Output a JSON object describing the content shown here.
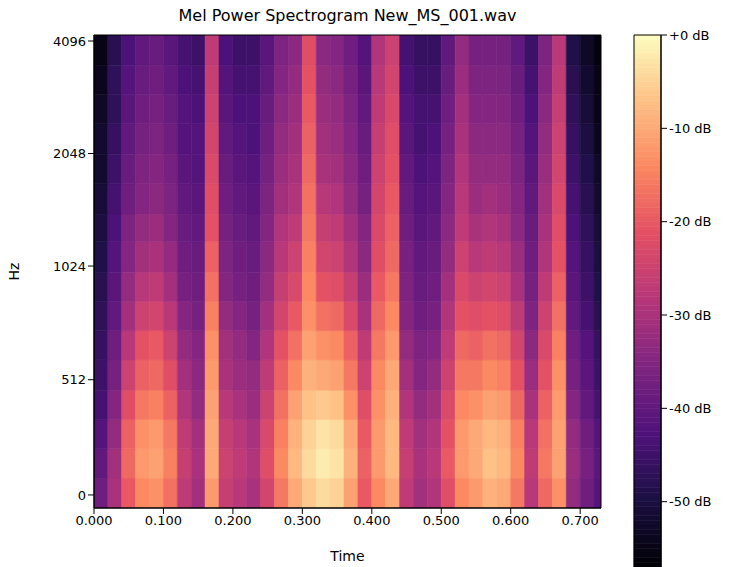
{
  "chart_data": {
    "type": "heatmap",
    "title": "Mel Power Spectrogram New_MS_001.wav",
    "x_label": "Time",
    "y_label": "Hz",
    "xlim": [
      0,
      0.73
    ],
    "xticks": [
      {
        "value": 0,
        "label": "0.000"
      },
      {
        "value": 0.1,
        "label": "0.100"
      },
      {
        "value": 0.2,
        "label": "0.200"
      },
      {
        "value": 0.3,
        "label": "0.300"
      },
      {
        "value": 0.4,
        "label": "0.400"
      },
      {
        "value": 0.5,
        "label": "0.500"
      },
      {
        "value": 0.6,
        "label": "0.600"
      },
      {
        "value": 0.7,
        "label": "0.700"
      }
    ],
    "ylim": [
      -58,
      4250
    ],
    "yticks": [
      0,
      512,
      1024,
      2048,
      4096
    ],
    "log": "y",
    "x_edges": [
      0,
      0.02,
      0.04,
      0.06,
      0.08,
      0.1,
      0.12,
      0.14,
      0.16,
      0.18,
      0.2,
      0.22,
      0.24,
      0.26,
      0.28,
      0.3,
      0.32,
      0.34,
      0.36,
      0.38,
      0.4,
      0.42,
      0.44,
      0.46,
      0.48,
      0.5,
      0.52,
      0.54,
      0.56,
      0.58,
      0.6,
      0.62,
      0.64,
      0.66,
      0.68,
      0.7,
      0.72,
      0.73
    ],
    "y_edges": [
      -58,
      75,
      205,
      335,
      465,
      600,
      730,
      860,
      990,
      1190,
      1410,
      1700,
      2040,
      2460,
      2950,
      3530,
      4250
    ],
    "cells": [
      [
        -38,
        -40,
        -42,
        -44,
        -45,
        -46,
        -47,
        -48,
        -49,
        -50,
        -51,
        -52,
        -52,
        -53,
        -54,
        -55
      ],
      [
        -30,
        -31,
        -33,
        -35,
        -37,
        -38,
        -40,
        -41,
        -42,
        -43,
        -44,
        -45,
        -46,
        -47,
        -47,
        -48
      ],
      [
        -20,
        -18,
        -19,
        -22,
        -25,
        -28,
        -31,
        -33,
        -35,
        -36,
        -38,
        -39,
        -40,
        -41,
        -42,
        -43
      ],
      [
        -14,
        -12,
        -13,
        -16,
        -19,
        -21,
        -25,
        -28,
        -31,
        -33,
        -35,
        -36,
        -37,
        -38,
        -39,
        -40
      ],
      [
        -13,
        -11,
        -12,
        -15,
        -18,
        -20,
        -24,
        -27,
        -30,
        -32,
        -34,
        -35,
        -36,
        -37,
        -38,
        -39
      ],
      [
        -17,
        -15,
        -16,
        -19,
        -22,
        -25,
        -28,
        -31,
        -33,
        -35,
        -36,
        -37,
        -38,
        -39,
        -40,
        -41
      ],
      [
        -27,
        -26,
        -27,
        -29,
        -31,
        -33,
        -35,
        -37,
        -38,
        -39,
        -40,
        -41,
        -42,
        -42,
        -43,
        -44
      ],
      [
        -31,
        -30,
        -31,
        -33,
        -34,
        -35,
        -37,
        -38,
        -39,
        -40,
        -41,
        -42,
        -42,
        -43,
        -44,
        -45
      ],
      [
        -12,
        -10,
        -10,
        -11,
        -12,
        -13,
        -15,
        -17,
        -19,
        -21,
        -22,
        -23,
        -24,
        -25,
        -26,
        -27
      ],
      [
        -26,
        -25,
        -26,
        -28,
        -30,
        -31,
        -33,
        -35,
        -36,
        -37,
        -38,
        -39,
        -40,
        -41,
        -42,
        -43
      ],
      [
        -28,
        -27,
        -28,
        -30,
        -32,
        -33,
        -35,
        -37,
        -38,
        -39,
        -40,
        -41,
        -42,
        -43,
        -44,
        -45
      ],
      [
        -30,
        -29,
        -30,
        -32,
        -33,
        -35,
        -37,
        -38,
        -39,
        -40,
        -41,
        -42,
        -43,
        -43,
        -44,
        -45
      ],
      [
        -24,
        -22,
        -23,
        -25,
        -27,
        -29,
        -31,
        -33,
        -34,
        -35,
        -36,
        -37,
        -38,
        -39,
        -40,
        -41
      ],
      [
        -16,
        -14,
        -15,
        -17,
        -19,
        -21,
        -24,
        -26,
        -28,
        -29,
        -31,
        -32,
        -33,
        -34,
        -35,
        -36
      ],
      [
        -10,
        -8,
        -9,
        -11,
        -14,
        -17,
        -20,
        -23,
        -25,
        -27,
        -29,
        -30,
        -31,
        -32,
        -33,
        -34
      ],
      [
        -6,
        -4,
        -5,
        -7,
        -9,
        -11,
        -13,
        -14,
        -15,
        -16,
        -17,
        -18,
        -19,
        -20,
        -21,
        -22
      ],
      [
        -4,
        -2,
        -3,
        -6,
        -10,
        -13,
        -17,
        -21,
        -24,
        -26,
        -28,
        -30,
        -31,
        -32,
        -33,
        -34
      ],
      [
        -5,
        -3,
        -4,
        -7,
        -11,
        -14,
        -18,
        -22,
        -25,
        -27,
        -29,
        -31,
        -32,
        -33,
        -34,
        -35
      ],
      [
        -11,
        -9,
        -10,
        -13,
        -16,
        -19,
        -23,
        -26,
        -29,
        -31,
        -33,
        -34,
        -35,
        -36,
        -37,
        -38
      ],
      [
        -20,
        -19,
        -20,
        -22,
        -25,
        -27,
        -30,
        -32,
        -34,
        -35,
        -37,
        -38,
        -39,
        -40,
        -41,
        -42
      ],
      [
        -14,
        -12,
        -12,
        -13,
        -14,
        -16,
        -18,
        -20,
        -22,
        -23,
        -24,
        -25,
        -26,
        -27,
        -28,
        -29
      ],
      [
        -10,
        -8,
        -8,
        -9,
        -10,
        -12,
        -14,
        -16,
        -18,
        -19,
        -20,
        -21,
        -22,
        -23,
        -24,
        -25
      ],
      [
        -27,
        -26,
        -27,
        -29,
        -31,
        -33,
        -35,
        -36,
        -37,
        -38,
        -39,
        -40,
        -41,
        -42,
        -43,
        -44
      ],
      [
        -31,
        -30,
        -31,
        -33,
        -35,
        -36,
        -38,
        -39,
        -40,
        -41,
        -42,
        -43,
        -44,
        -44,
        -45,
        -46
      ],
      [
        -29,
        -28,
        -29,
        -31,
        -33,
        -35,
        -37,
        -38,
        -39,
        -40,
        -41,
        -42,
        -43,
        -44,
        -45,
        -46
      ],
      [
        -22,
        -20,
        -21,
        -23,
        -25,
        -27,
        -29,
        -31,
        -33,
        -34,
        -35,
        -36,
        -37,
        -38,
        -39,
        -40
      ],
      [
        -14,
        -12,
        -12,
        -14,
        -16,
        -18,
        -21,
        -23,
        -25,
        -27,
        -28,
        -29,
        -30,
        -31,
        -32,
        -33
      ],
      [
        -12,
        -10,
        -10,
        -13,
        -16,
        -19,
        -22,
        -25,
        -28,
        -30,
        -32,
        -33,
        -34,
        -35,
        -36,
        -37
      ],
      [
        -9,
        -7,
        -8,
        -11,
        -14,
        -17,
        -21,
        -24,
        -27,
        -29,
        -31,
        -33,
        -34,
        -35,
        -36,
        -37
      ],
      [
        -10,
        -8,
        -9,
        -12,
        -15,
        -18,
        -22,
        -25,
        -28,
        -30,
        -32,
        -33,
        -34,
        -35,
        -36,
        -37
      ],
      [
        -16,
        -14,
        -15,
        -18,
        -21,
        -24,
        -27,
        -30,
        -32,
        -34,
        -35,
        -36,
        -37,
        -38,
        -39,
        -40
      ],
      [
        -28,
        -27,
        -28,
        -30,
        -32,
        -34,
        -36,
        -37,
        -38,
        -39,
        -40,
        -41,
        -42,
        -43,
        -44,
        -45
      ],
      [
        -18,
        -16,
        -17,
        -19,
        -21,
        -23,
        -25,
        -27,
        -29,
        -30,
        -31,
        -32,
        -33,
        -34,
        -35,
        -36
      ],
      [
        -13,
        -11,
        -11,
        -12,
        -13,
        -15,
        -17,
        -19,
        -21,
        -22,
        -23,
        -24,
        -25,
        -26,
        -27,
        -28
      ],
      [
        -33,
        -32,
        -33,
        -35,
        -37,
        -38,
        -40,
        -41,
        -42,
        -43,
        -44,
        -45,
        -46,
        -47,
        -48,
        -49
      ],
      [
        -38,
        -37,
        -38,
        -40,
        -41,
        -42,
        -44,
        -45,
        -46,
        -47,
        -48,
        -49,
        -50,
        -51,
        -52,
        -53
      ],
      [
        -42,
        -41,
        -42,
        -44,
        -45,
        -46,
        -48,
        -49,
        -50,
        -51,
        -52,
        -53,
        -54,
        -55,
        -55,
        -56
      ]
    ],
    "colorbar": {
      "range": [
        -57,
        0
      ],
      "ticks": [
        {
          "value": 0,
          "label": "+0 dB"
        },
        {
          "value": -10,
          "label": "-10 dB"
        },
        {
          "value": -20,
          "label": "-20 dB"
        },
        {
          "value": -30,
          "label": "-30 dB"
        },
        {
          "value": -40,
          "label": "-40 dB"
        },
        {
          "value": -50,
          "label": "-50 dB"
        }
      ]
    }
  }
}
